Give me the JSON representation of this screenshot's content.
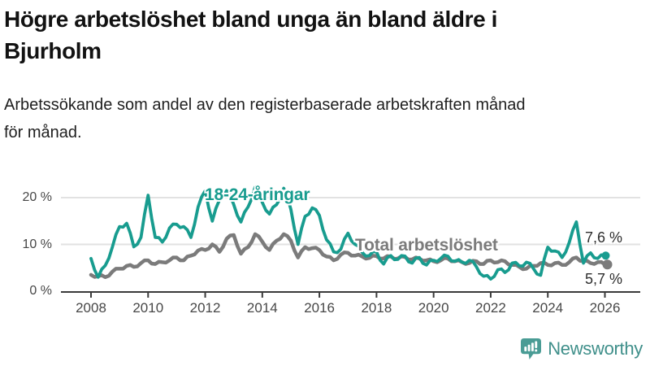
{
  "headline": {
    "line1": "Högre arbetslöshet bland unga än bland äldre i",
    "line2": "Bjurholm"
  },
  "subtitle": {
    "line1": "Arbetssökande som andel av den registerbaserade arbetskraften månad",
    "line2": "för månad."
  },
  "chart_data": {
    "type": "line",
    "title": "Högre arbetslöshet bland unga än bland äldre i Bjurholm",
    "subtitle": "Arbetssökande som andel av den registerbaserade arbetskraften månad för månad.",
    "x_start": 2008,
    "x_step_years": 0.25,
    "xlim": [
      2007,
      2026.5
    ],
    "ylim": [
      0,
      24
    ],
    "grid": "horizontal",
    "legend_position": "inline-labels",
    "x_ticks": [
      "2008",
      "2010",
      "2012",
      "2014",
      "2016",
      "2018",
      "2020",
      "2022",
      "2024",
      "2026"
    ],
    "y_ticks": [
      {
        "value": 0,
        "label": "0 %"
      },
      {
        "value": 10,
        "label": "10 %"
      },
      {
        "value": 20,
        "label": "20 %"
      }
    ],
    "series": [
      {
        "name": "18-24-åringar",
        "color": "#189C8F",
        "end_label": "7,6 %",
        "end_value": 7.6,
        "values": [
          7.0,
          3.0,
          5.5,
          9.5,
          13.8,
          14.5,
          9.5,
          11.5,
          20.5,
          11.5,
          10.5,
          13.5,
          14.3,
          13.8,
          11.5,
          18.0,
          21.5,
          15.0,
          19.5,
          21.5,
          18.5,
          14.8,
          18.0,
          22.3,
          19.0,
          16.5,
          18.5,
          22.0,
          17.5,
          10.0,
          16.0,
          17.8,
          16.2,
          11.0,
          8.4,
          9.0,
          12.4,
          10.0,
          8.3,
          7.6,
          8.4,
          5.8,
          7.6,
          6.8,
          7.5,
          6.0,
          7.2,
          5.6,
          6.6,
          7.0,
          7.5,
          6.4,
          6.2,
          6.6,
          5.2,
          3.2,
          2.6,
          4.6,
          4.0,
          6.0,
          5.4,
          6.2,
          4.8,
          3.4,
          9.4,
          8.6,
          7.2,
          10.4,
          14.8,
          6.0,
          8.2,
          7.0,
          7.6
        ]
      },
      {
        "name": "Total arbetslöshet",
        "color": "#7B7B7B",
        "end_label": "5,7 %",
        "end_value": 5.7,
        "values": [
          3.5,
          3.2,
          3.0,
          4.2,
          4.8,
          5.4,
          5.2,
          6.0,
          6.6,
          5.8,
          6.2,
          6.6,
          7.2,
          6.6,
          7.6,
          8.7,
          8.8,
          10.0,
          8.4,
          11.2,
          12.0,
          8.0,
          9.4,
          12.2,
          10.6,
          8.8,
          10.8,
          12.2,
          10.8,
          7.2,
          9.4,
          9.2,
          8.8,
          7.4,
          6.6,
          7.8,
          8.2,
          7.6,
          7.4,
          7.1,
          7.5,
          7.0,
          7.4,
          7.0,
          7.3,
          6.8,
          7.0,
          6.6,
          6.4,
          6.6,
          7.0,
          6.4,
          6.2,
          6.0,
          6.4,
          5.8,
          6.6,
          6.2,
          6.4,
          5.6,
          5.2,
          4.8,
          5.4,
          6.0,
          5.6,
          6.0,
          5.6,
          6.2,
          7.2,
          6.4,
          6.0,
          6.2,
          5.7
        ]
      }
    ]
  },
  "branding": {
    "name": "Newsworthy",
    "icon": "newsworthy-bubble-chart-icon",
    "text_color": "#3F8F8A",
    "icon_color": "#4A9C95"
  }
}
